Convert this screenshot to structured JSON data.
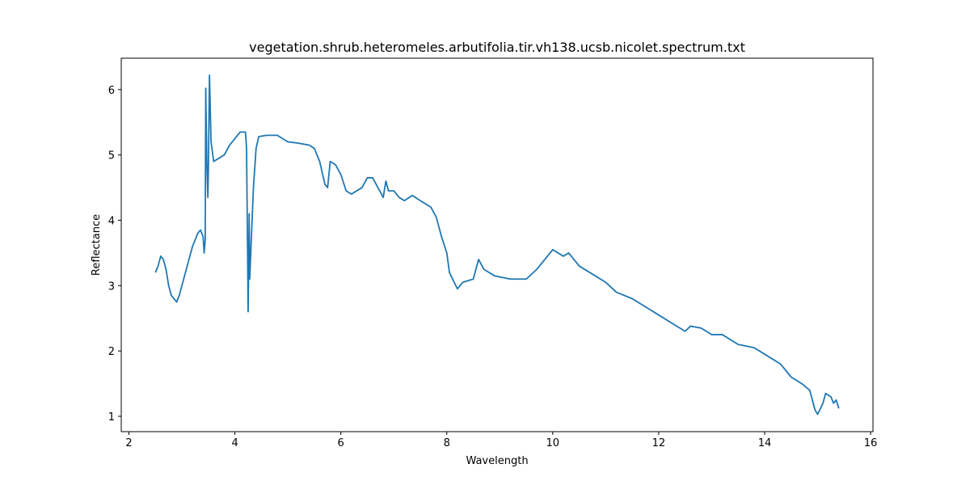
{
  "chart_data": {
    "type": "line",
    "title": "vegetation.shrub.heteromeles.arbutifolia.tir.vh138.ucsb.nicolet.spectrum.txt",
    "xlabel": "Wavelength",
    "ylabel": "Reflectance",
    "xlim": [
      1.855,
      16.045
    ],
    "ylim": [
      0.765,
      6.48
    ],
    "xticks": [
      2,
      4,
      6,
      8,
      10,
      12,
      14,
      16
    ],
    "yticks": [
      1,
      2,
      3,
      4,
      5,
      6
    ],
    "series": [
      {
        "color": "#1f77b4",
        "x": [
          2.5,
          2.55,
          2.6,
          2.65,
          2.7,
          2.75,
          2.8,
          2.85,
          2.9,
          2.95,
          3.0,
          3.1,
          3.2,
          3.3,
          3.35,
          3.4,
          3.42,
          3.44,
          3.45,
          3.47,
          3.49,
          3.5,
          3.52,
          3.55,
          3.6,
          3.7,
          3.8,
          3.9,
          4.0,
          4.1,
          4.2,
          4.22,
          4.24,
          4.25,
          4.27,
          4.28,
          4.3,
          4.35,
          4.4,
          4.45,
          4.6,
          4.8,
          5.0,
          5.2,
          5.4,
          5.5,
          5.6,
          5.7,
          5.75,
          5.8,
          5.9,
          6.0,
          6.1,
          6.2,
          6.4,
          6.5,
          6.6,
          6.7,
          6.8,
          6.85,
          6.9,
          7.0,
          7.1,
          7.2,
          7.35,
          7.5,
          7.7,
          7.8,
          7.9,
          8.0,
          8.05,
          8.2,
          8.3,
          8.5,
          8.6,
          8.7,
          8.9,
          9.2,
          9.5,
          9.7,
          9.9,
          10.0,
          10.2,
          10.3,
          10.5,
          10.8,
          11.0,
          11.2,
          11.5,
          11.8,
          12.0,
          12.3,
          12.5,
          12.6,
          12.8,
          13.0,
          13.2,
          13.5,
          13.8,
          14.0,
          14.3,
          14.5,
          14.7,
          14.85,
          14.95,
          15.0,
          15.1,
          15.15,
          15.25,
          15.3,
          15.35,
          15.4
        ],
        "values": [
          3.2,
          3.3,
          3.45,
          3.4,
          3.25,
          3.0,
          2.85,
          2.8,
          2.75,
          2.85,
          3.0,
          3.3,
          3.6,
          3.8,
          3.85,
          3.75,
          3.5,
          3.7,
          6.02,
          4.9,
          4.35,
          4.8,
          6.22,
          5.2,
          4.9,
          4.95,
          5.0,
          5.15,
          5.25,
          5.35,
          5.35,
          5.1,
          3.5,
          2.6,
          4.1,
          3.1,
          3.5,
          4.5,
          5.1,
          5.28,
          5.3,
          5.3,
          5.2,
          5.18,
          5.15,
          5.1,
          4.9,
          4.55,
          4.5,
          4.9,
          4.85,
          4.7,
          4.45,
          4.4,
          4.5,
          4.65,
          4.65,
          4.5,
          4.35,
          4.6,
          4.45,
          4.45,
          4.35,
          4.3,
          4.38,
          4.3,
          4.2,
          4.05,
          3.75,
          3.5,
          3.2,
          2.95,
          3.05,
          3.1,
          3.4,
          3.25,
          3.15,
          3.1,
          3.1,
          3.25,
          3.45,
          3.55,
          3.45,
          3.5,
          3.3,
          3.15,
          3.05,
          2.9,
          2.8,
          2.65,
          2.55,
          2.4,
          2.3,
          2.38,
          2.35,
          2.25,
          2.25,
          2.1,
          2.05,
          1.95,
          1.8,
          1.6,
          1.5,
          1.4,
          1.1,
          1.03,
          1.2,
          1.35,
          1.3,
          1.2,
          1.25,
          1.12
        ]
      }
    ]
  }
}
